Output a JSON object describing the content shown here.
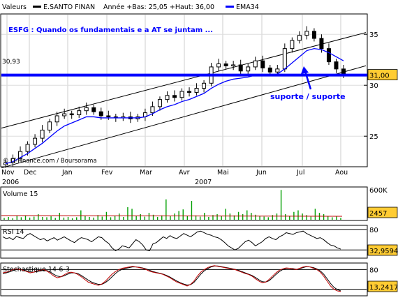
{
  "legend": {
    "series_label": "Valeurs",
    "instrument": "E.SANTO FINAN",
    "range_text": "Année +Bas: 25,05 +Haut: 36,00",
    "ema_label": "EMA34"
  },
  "annotations": {
    "title": "ESFG : Quando os fundamentais e a AT se juntam ...",
    "left_level": "30,93",
    "support_text": "suporte / suporte",
    "source": "© IT-Finance.com / Boursorama"
  },
  "colors": {
    "price": "#000000",
    "ema": "#0000ff",
    "support": "#0000ff",
    "volume": "#00a000",
    "volume_avg": "#c00000",
    "stoch_k": "#c00000",
    "stoch_d": "#000000",
    "badge_price": "#ffcc33",
    "badge_volume": "#ffcc33",
    "badge_rsi": "#ffcc33",
    "badge_stoch": "#ffcc33"
  },
  "chart_data": [
    {
      "type": "candlestick",
      "x_axis": {
        "months": [
          "Nov",
          "Dec",
          "Jan",
          "Fev",
          "Mar",
          "Avr",
          "Mai",
          "Jun",
          "Jul",
          "Aou"
        ],
        "years": [
          "2006",
          "2007"
        ]
      },
      "ylim": [
        22,
        37
      ],
      "y_ticks": [
        25,
        30,
        35
      ],
      "last_value_label": "31,00",
      "close": [
        22.4,
        22.8,
        23.5,
        24.2,
        24.8,
        25.6,
        26.4,
        27.0,
        27.2,
        27.1,
        27.5,
        27.8,
        27.4,
        27.0,
        26.9,
        26.8,
        26.9,
        26.7,
        26.9,
        27.3,
        27.9,
        28.6,
        29.0,
        28.8,
        29.4,
        29.3,
        29.7,
        30.2,
        31.8,
        32.1,
        31.9,
        32.0,
        31.4,
        31.8,
        32.4,
        31.7,
        31.3,
        31.6,
        33.6,
        34.4,
        34.9,
        35.3,
        34.6,
        33.6,
        32.3,
        31.6,
        31.0
      ],
      "ema34": [
        22.3,
        22.5,
        22.9,
        23.3,
        23.8,
        24.3,
        24.9,
        25.5,
        26.0,
        26.3,
        26.6,
        26.9,
        26.9,
        26.8,
        26.8,
        26.8,
        26.8,
        26.8,
        26.8,
        26.9,
        27.2,
        27.6,
        27.9,
        28.1,
        28.4,
        28.6,
        28.9,
        29.2,
        29.7,
        30.1,
        30.4,
        30.6,
        30.7,
        30.8,
        31.0,
        31.0,
        31.0,
        31.1,
        31.6,
        32.2,
        32.8,
        33.4,
        33.6,
        33.5,
        33.2,
        32.8,
        32.4
      ],
      "channel_upper": [
        [
          0,
          25.9
        ],
        [
          46,
          34.6
        ]
      ],
      "channel_lower": [
        [
          0,
          22.0
        ],
        [
          46,
          31.3
        ]
      ],
      "support_level": 31.0
    },
    {
      "type": "bar",
      "title": "Volume 15",
      "y_ticks": [
        "600K"
      ],
      "last_value_label": "2457",
      "values": [
        6,
        9,
        5,
        12,
        8,
        14,
        7,
        10,
        18,
        9,
        8,
        11,
        6,
        22,
        7,
        9,
        5,
        8,
        30,
        12,
        9,
        7,
        15,
        10,
        25,
        8,
        12,
        20,
        9,
        40,
        35,
        12,
        18,
        10,
        22,
        16,
        9,
        14,
        65,
        11,
        20,
        28,
        33,
        12,
        60,
        14,
        10,
        22,
        9,
        15,
        18,
        12,
        35,
        20,
        14,
        25,
        18,
        30,
        22,
        16,
        12,
        10,
        8,
        15,
        20,
        95,
        18,
        12,
        25,
        30,
        20,
        15,
        10,
        35,
        22,
        18,
        12,
        8,
        10,
        6
      ],
      "ylim": [
        0,
        100
      ]
    },
    {
      "type": "line",
      "title": "RSI 14",
      "y_ticks": [
        80
      ],
      "last_value_label": "32,9594",
      "ylim": [
        10,
        90
      ],
      "values": [
        62,
        58,
        60,
        55,
        63,
        60,
        58,
        66,
        70,
        65,
        60,
        55,
        58,
        52,
        56,
        60,
        54,
        58,
        62,
        57,
        52,
        48,
        55,
        60,
        58,
        55,
        50,
        56,
        62,
        60,
        52,
        46,
        35,
        28,
        32,
        40,
        38,
        35,
        45,
        55,
        50,
        42,
        30,
        28,
        45,
        48,
        55,
        62,
        58,
        65,
        60,
        58,
        64,
        70,
        66,
        62,
        68,
        74,
        76,
        72,
        68,
        66,
        62,
        60,
        55,
        48,
        40,
        35,
        30,
        34,
        42,
        50,
        54,
        48,
        40,
        45,
        50,
        58,
        62,
        58,
        55,
        62,
        66,
        72,
        70,
        68,
        72,
        74,
        76,
        70,
        66,
        62,
        58,
        60,
        55,
        48,
        42,
        40,
        35,
        32
      ]
    },
    {
      "type": "line",
      "title": "Stochastique 14-6-3",
      "y_ticks": [
        80
      ],
      "last_value_label": "13,2417",
      "ylim": [
        0,
        100
      ],
      "k": [
        70,
        72,
        76,
        80,
        82,
        80,
        78,
        74,
        70,
        72,
        76,
        78,
        80,
        75,
        68,
        60,
        55,
        58,
        64,
        70,
        72,
        70,
        65,
        58,
        50,
        42,
        38,
        35,
        32,
        36,
        44,
        55,
        66,
        74,
        80,
        84,
        86,
        88,
        90,
        88,
        86,
        84,
        80,
        75,
        72,
        70,
        68,
        65,
        60,
        55,
        48,
        42,
        38,
        34,
        30,
        35,
        45,
        60,
        72,
        80,
        86,
        90,
        92,
        90,
        88,
        86,
        84,
        82,
        80,
        76,
        72,
        68,
        65,
        60,
        52,
        45,
        40,
        42,
        50,
        60,
        70,
        78,
        82,
        85,
        84,
        82,
        80,
        84,
        88,
        90,
        88,
        84,
        80,
        72,
        60,
        45,
        30,
        20,
        15,
        13
      ],
      "d": [
        68,
        70,
        73,
        77,
        80,
        80,
        79,
        76,
        73,
        72,
        74,
        76,
        78,
        77,
        72,
        65,
        60,
        58,
        61,
        66,
        70,
        70,
        68,
        62,
        55,
        48,
        42,
        38,
        35,
        35,
        40,
        48,
        58,
        68,
        76,
        81,
        84,
        86,
        88,
        88,
        87,
        85,
        82,
        78,
        74,
        71,
        69,
        66,
        62,
        57,
        51,
        45,
        40,
        36,
        33,
        34,
        41,
        53,
        66,
        76,
        83,
        88,
        91,
        91,
        89,
        87,
        85,
        83,
        81,
        78,
        74,
        70,
        66,
        62,
        56,
        49,
        43,
        42,
        46,
        55,
        65,
        74,
        80,
        84,
        84,
        83,
        81,
        83,
        86,
        89,
        88,
        86,
        82,
        76,
        66,
        52,
        38,
        26,
        19,
        15
      ]
    }
  ]
}
